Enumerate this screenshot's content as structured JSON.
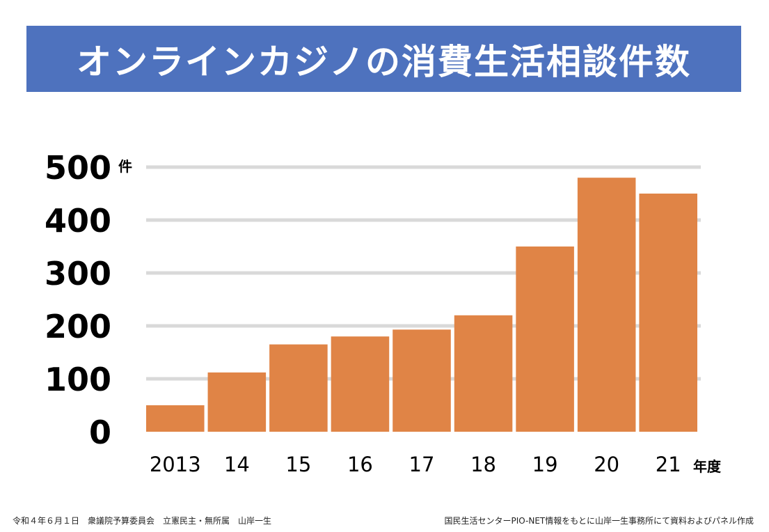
{
  "title": "オンラインカジノの消費生活相談件数",
  "colors": {
    "title_bg": "#4e72be",
    "bar": "#e08446",
    "grid": "#d9d9d9"
  },
  "chart_data": {
    "type": "bar",
    "title": "オンラインカジノの消費生活相談件数",
    "categories": [
      "2013",
      "14",
      "15",
      "16",
      "17",
      "18",
      "19",
      "20",
      "21"
    ],
    "values": [
      50,
      112,
      165,
      180,
      193,
      220,
      350,
      480,
      450
    ],
    "y_unit": "件",
    "x_unit": "年度",
    "ylim": [
      0,
      500
    ],
    "yticks": [
      0,
      100,
      200,
      300,
      400,
      500
    ],
    "grid": true,
    "legend": "none"
  },
  "footer": {
    "left": "令和４年６月１日　衆議院予算委員会　立憲民主・無所属　山岸一生",
    "right": "国民生活センターPIO-NET情報をもとに山岸一生事務所にて資料およびパネル作成"
  }
}
